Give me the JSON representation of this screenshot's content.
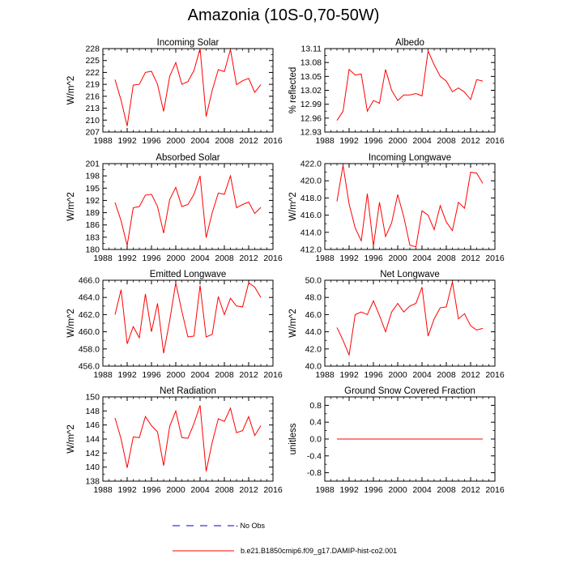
{
  "title": "Amazonia (10S-0,70-50W)",
  "colors": {
    "model": "#ff0000",
    "obs": "#0000cc",
    "axis": "#000000"
  },
  "legend": {
    "obs_label": "- No Obs",
    "model_label": "b.e21.B1850cmip6.f09_g17.DAMIP-hist-co2.001"
  },
  "chart_data": [
    {
      "type": "line",
      "title": "Incoming Solar",
      "ylabel": "W/m^2",
      "xlim": [
        1988,
        2016
      ],
      "xticks": [
        1988,
        1992,
        1996,
        2000,
        2004,
        2008,
        2012,
        2016
      ],
      "ylim": [
        207,
        228
      ],
      "yticks": [
        "207",
        "210",
        "213",
        "216",
        "219",
        "222",
        "225",
        "228"
      ],
      "series": [
        {
          "x": [
            1990,
            1991,
            1992,
            1993,
            1994,
            1995,
            1996,
            1997,
            1998,
            1999,
            2000,
            2001,
            2002,
            2003,
            2004,
            2005,
            2006,
            2007,
            2008,
            2009,
            2010,
            2011,
            2012,
            2013,
            2014
          ],
          "values": [
            220.2,
            215.0,
            208.5,
            218.8,
            219.0,
            222.0,
            222.3,
            219.0,
            212.2,
            221.0,
            224.5,
            219.0,
            219.7,
            222.5,
            228.0,
            210.9,
            217.5,
            222.7,
            222.2,
            227.8,
            218.9,
            219.9,
            220.5,
            217.0,
            218.9
          ]
        }
      ]
    },
    {
      "type": "line",
      "title": "Albedo",
      "ylabel": "% reflected",
      "xlim": [
        1988,
        2016
      ],
      "xticks": [
        1988,
        1992,
        1996,
        2000,
        2004,
        2008,
        2012,
        2016
      ],
      "ylim": [
        12.93,
        13.11
      ],
      "yticks": [
        "12.93",
        "12.96",
        "12.99",
        "13.02",
        "13.05",
        "13.08",
        "13.11"
      ],
      "series": [
        {
          "x": [
            1990,
            1991,
            1992,
            1993,
            1994,
            1995,
            1996,
            1997,
            1998,
            1999,
            2000,
            2001,
            2002,
            2003,
            2004,
            2005,
            2006,
            2007,
            2008,
            2009,
            2010,
            2011,
            2012,
            2013,
            2014
          ],
          "values": [
            12.955,
            12.975,
            13.065,
            13.053,
            13.055,
            12.975,
            12.998,
            12.992,
            13.065,
            13.02,
            12.998,
            13.01,
            13.01,
            13.013,
            13.008,
            13.105,
            13.075,
            13.05,
            13.04,
            13.017,
            13.025,
            13.016,
            13.0,
            13.043,
            13.04
          ]
        }
      ]
    },
    {
      "type": "line",
      "title": "Absorbed Solar",
      "ylabel": "W/m^2",
      "xlim": [
        1988,
        2016
      ],
      "xticks": [
        1988,
        1992,
        1996,
        2000,
        2004,
        2008,
        2012,
        2016
      ],
      "ylim": [
        180,
        201
      ],
      "yticks": [
        "180",
        "183",
        "186",
        "189",
        "192",
        "195",
        "198",
        "201"
      ],
      "series": [
        {
          "x": [
            1990,
            1991,
            1992,
            1993,
            1994,
            1995,
            1996,
            1997,
            1998,
            1999,
            2000,
            2001,
            2002,
            2003,
            2004,
            2005,
            2006,
            2007,
            2008,
            2009,
            2010,
            2011,
            2012,
            2013,
            2014
          ],
          "values": [
            191.5,
            187.0,
            181.0,
            190.2,
            190.5,
            193.3,
            193.5,
            190.5,
            184.0,
            192.2,
            195.2,
            190.5,
            191.0,
            193.5,
            198.0,
            182.9,
            189.0,
            193.8,
            193.5,
            198.0,
            190.2,
            191.0,
            191.6,
            188.8,
            190.3
          ]
        }
      ]
    },
    {
      "type": "line",
      "title": "Incoming Longwave",
      "ylabel": "W/m^2",
      "xlim": [
        1988,
        2016
      ],
      "xticks": [
        1988,
        1992,
        1996,
        2000,
        2004,
        2008,
        2012,
        2016
      ],
      "ylim": [
        412,
        422
      ],
      "yticks": [
        "412.0",
        "414.0",
        "416.0",
        "418.0",
        "420.0",
        "422.0"
      ],
      "series": [
        {
          "x": [
            1990,
            1991,
            1992,
            1993,
            1994,
            1995,
            1996,
            1997,
            1998,
            1999,
            2000,
            2001,
            2002,
            2003,
            2004,
            2005,
            2006,
            2007,
            2008,
            2009,
            2010,
            2011,
            2012,
            2013,
            2014
          ],
          "values": [
            417.6,
            421.8,
            417.3,
            414.5,
            413.0,
            418.5,
            412.4,
            417.5,
            413.5,
            415.1,
            418.4,
            415.8,
            412.5,
            412.3,
            416.5,
            416.0,
            414.3,
            417.1,
            415.2,
            414.2,
            417.5,
            416.8,
            421.0,
            420.9,
            419.7
          ]
        }
      ]
    },
    {
      "type": "line",
      "title": "Emitted Longwave",
      "ylabel": "W/m^2",
      "xlim": [
        1988,
        2016
      ],
      "xticks": [
        1988,
        1992,
        1996,
        2000,
        2004,
        2008,
        2012,
        2016
      ],
      "ylim": [
        456,
        466
      ],
      "yticks": [
        "456.0",
        "458.0",
        "460.0",
        "462.0",
        "464.0",
        "466.0"
      ],
      "series": [
        {
          "x": [
            1990,
            1991,
            1992,
            1993,
            1994,
            1995,
            1996,
            1997,
            1998,
            1999,
            2000,
            2001,
            2002,
            2003,
            2004,
            2005,
            2006,
            2007,
            2008,
            2009,
            2010,
            2011,
            2012,
            2013,
            2014
          ],
          "values": [
            462.0,
            464.9,
            458.6,
            460.6,
            459.3,
            464.4,
            460.0,
            463.3,
            457.5,
            461.3,
            465.7,
            462.4,
            459.4,
            459.5,
            465.4,
            459.4,
            459.7,
            464.1,
            462.0,
            463.9,
            463.0,
            462.9,
            465.7,
            465.2,
            464.0
          ]
        }
      ]
    },
    {
      "type": "line",
      "title": "Net Longwave",
      "ylabel": "W/m^2",
      "xlim": [
        1988,
        2016
      ],
      "xticks": [
        1988,
        1992,
        1996,
        2000,
        2004,
        2008,
        2012,
        2016
      ],
      "ylim": [
        40,
        50
      ],
      "yticks": [
        "40.0",
        "42.0",
        "44.0",
        "46.0",
        "48.0",
        "50.0"
      ],
      "series": [
        {
          "x": [
            1990,
            1991,
            1992,
            1993,
            1994,
            1995,
            1996,
            1997,
            1998,
            1999,
            2000,
            2001,
            2002,
            2003,
            2004,
            2005,
            2006,
            2007,
            2008,
            2009,
            2010,
            2011,
            2012,
            2013,
            2014
          ],
          "values": [
            44.5,
            43.0,
            41.3,
            46.0,
            46.3,
            46.0,
            47.6,
            45.9,
            44.0,
            46.3,
            47.3,
            46.3,
            47.0,
            47.3,
            49.2,
            43.5,
            45.5,
            46.8,
            46.9,
            49.8,
            45.5,
            46.1,
            44.7,
            44.2,
            44.4
          ]
        }
      ]
    },
    {
      "type": "line",
      "title": "Net Radiation",
      "ylabel": "W/m^2",
      "xlim": [
        1988,
        2016
      ],
      "xticks": [
        1988,
        1992,
        1996,
        2000,
        2004,
        2008,
        2012,
        2016
      ],
      "ylim": [
        138,
        150
      ],
      "yticks": [
        "138",
        "140",
        "142",
        "144",
        "146",
        "148",
        "150"
      ],
      "series": [
        {
          "x": [
            1990,
            1991,
            1992,
            1993,
            1994,
            1995,
            1996,
            1997,
            1998,
            1999,
            2000,
            2001,
            2002,
            2003,
            2004,
            2005,
            2006,
            2007,
            2008,
            2009,
            2010,
            2011,
            2012,
            2013,
            2014
          ],
          "values": [
            147.0,
            144.0,
            139.9,
            144.3,
            144.2,
            147.2,
            145.9,
            145.0,
            140.2,
            145.8,
            148.0,
            144.2,
            144.1,
            146.2,
            148.8,
            139.4,
            143.5,
            146.9,
            146.5,
            148.4,
            144.9,
            145.2,
            147.2,
            144.5,
            145.9
          ]
        }
      ]
    },
    {
      "type": "line",
      "title": "Ground Snow Covered Fraction",
      "ylabel": "unitless",
      "xlim": [
        1988,
        2016
      ],
      "xticks": [
        1988,
        1992,
        1996,
        2000,
        2004,
        2008,
        2012,
        2016
      ],
      "ylim": [
        -1,
        1
      ],
      "yticks": [
        "-0.8",
        "-0.4",
        "0.0",
        "0.4",
        "0.8"
      ],
      "series": [
        {
          "x": [
            1990,
            1991,
            1992,
            1993,
            1994,
            1995,
            1996,
            1997,
            1998,
            1999,
            2000,
            2001,
            2002,
            2003,
            2004,
            2005,
            2006,
            2007,
            2008,
            2009,
            2010,
            2011,
            2012,
            2013,
            2014
          ],
          "values": [
            0,
            0,
            0,
            0,
            0,
            0,
            0,
            0,
            0,
            0,
            0,
            0,
            0,
            0,
            0,
            0,
            0,
            0,
            0,
            0,
            0,
            0,
            0,
            0,
            0
          ]
        }
      ]
    }
  ]
}
